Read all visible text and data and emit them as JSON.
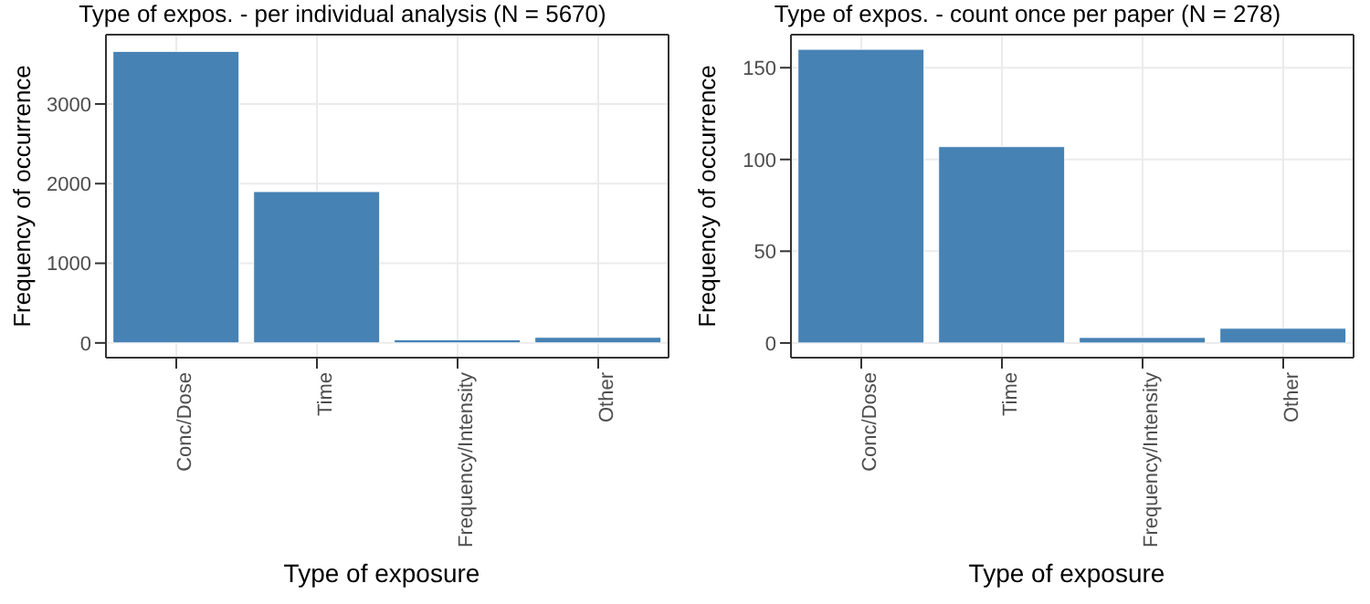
{
  "chart_data": [
    {
      "type": "bar",
      "title": "Type of expos. - per individual analysis (N = 5670)",
      "xlabel": "Type of exposure",
      "ylabel": "Frequency of occurrence",
      "categories": [
        "Conc/Dose",
        "Time",
        "Frequency/Intensity",
        "Other"
      ],
      "values": [
        3660,
        1900,
        40,
        70
      ],
      "color": "#4682b4",
      "ylim": [
        -185,
        3870
      ],
      "yticks": [
        0,
        1000,
        2000,
        3000
      ],
      "grid": true
    },
    {
      "type": "bar",
      "title": "Type of expos. - count once per paper (N = 278)",
      "xlabel": "Type of exposure",
      "ylabel": "Frequency of occurrence",
      "categories": [
        "Conc/Dose",
        "Time",
        "Frequency/Intensity",
        "Other"
      ],
      "values": [
        160,
        107,
        3,
        8
      ],
      "color": "#4682b4",
      "ylim": [
        -8,
        168
      ],
      "yticks": [
        0,
        50,
        100,
        150
      ],
      "grid": true
    }
  ]
}
